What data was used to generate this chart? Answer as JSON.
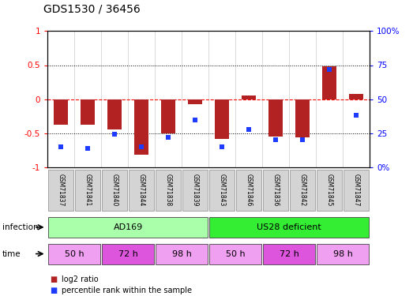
{
  "title": "GDS1530 / 36456",
  "samples": [
    "GSM71837",
    "GSM71841",
    "GSM71840",
    "GSM71844",
    "GSM71838",
    "GSM71839",
    "GSM71843",
    "GSM71846",
    "GSM71836",
    "GSM71842",
    "GSM71845",
    "GSM71847"
  ],
  "log2_ratio": [
    -0.38,
    -0.38,
    -0.45,
    -0.82,
    -0.5,
    -0.07,
    -0.58,
    0.05,
    -0.55,
    -0.56,
    0.48,
    0.08
  ],
  "pct_rank": [
    15,
    14,
    24,
    15,
    22,
    35,
    15,
    28,
    20,
    20,
    72,
    38
  ],
  "bar_color": "#b22222",
  "dot_color": "#1e3cff",
  "ylim": [
    -1,
    1
  ],
  "y2lim": [
    0,
    100
  ],
  "yticks": [
    -1,
    -0.5,
    0,
    0.5,
    1
  ],
  "ytick_labels": [
    "-1",
    "-0.5",
    "0",
    "0.5",
    "1"
  ],
  "y2ticks": [
    0,
    25,
    50,
    75,
    100
  ],
  "y2tick_labels": [
    "0%",
    "25",
    "50",
    "75",
    "100%"
  ],
  "zero_line_color": "#ff0000",
  "bar_width": 0.55,
  "infection_spans": [
    {
      "label": "AD169",
      "start": 0,
      "end": 6,
      "color": "#aaffaa"
    },
    {
      "label": "US28 deficient",
      "start": 6,
      "end": 12,
      "color": "#33ee33"
    }
  ],
  "time_spans": [
    {
      "label": "50 h",
      "start": 0,
      "end": 2,
      "color": "#f0a0f0"
    },
    {
      "label": "72 h",
      "start": 2,
      "end": 4,
      "color": "#dd55dd"
    },
    {
      "label": "98 h",
      "start": 4,
      "end": 6,
      "color": "#f0a0f0"
    },
    {
      "label": "50 h",
      "start": 6,
      "end": 8,
      "color": "#f0a0f0"
    },
    {
      "label": "72 h",
      "start": 8,
      "end": 10,
      "color": "#dd55dd"
    },
    {
      "label": "98 h",
      "start": 10,
      "end": 12,
      "color": "#f0a0f0"
    }
  ],
  "legend_items": [
    {
      "label": "log2 ratio",
      "color": "#b22222"
    },
    {
      "label": "percentile rank within the sample",
      "color": "#1e3cff"
    }
  ]
}
